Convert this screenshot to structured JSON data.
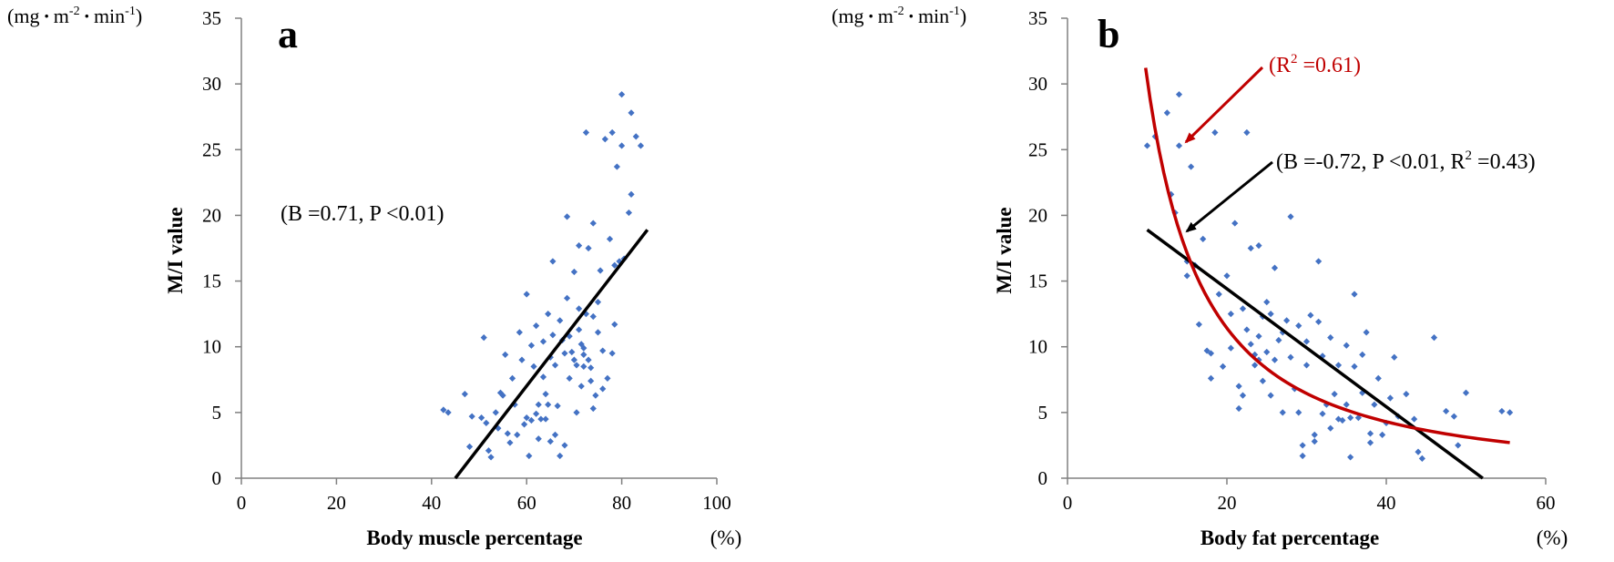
{
  "colors": {
    "points": "#4472C4",
    "fit_line": "#000000",
    "curve": "#C00000",
    "axis": "#808080"
  },
  "chart_data": [
    {
      "panel_label": "a",
      "type": "scatter",
      "xlabel": "Body muscle percentage",
      "xunit": "(%)",
      "ylabel": "M/I value",
      "yunit": "(mg·m⁻²·min⁻¹)",
      "yunit_parts": {
        "a": "(mg",
        "b": "m",
        "c": "-2",
        "d": "min",
        "e": "-1",
        "f": ")"
      },
      "xlim": [
        0,
        100
      ],
      "ylim": [
        0,
        35
      ],
      "xticks": [
        0,
        20,
        40,
        60,
        80,
        100
      ],
      "yticks": [
        0,
        5,
        10,
        15,
        20,
        25,
        30,
        35
      ],
      "grid": false,
      "annotations": [
        "(B =0.71, P <0.01)"
      ],
      "fit_line": {
        "x1": 45,
        "y1": 0,
        "x2": 85.4,
        "y2": 18.9
      },
      "points": [
        [
          42.5,
          5.2
        ],
        [
          43.5,
          5.0
        ],
        [
          47.0,
          6.4
        ],
        [
          48.0,
          2.4
        ],
        [
          48.5,
          4.7
        ],
        [
          50.5,
          4.6
        ],
        [
          51.0,
          10.7
        ],
        [
          51.5,
          4.2
        ],
        [
          52.0,
          2.1
        ],
        [
          52.5,
          1.6
        ],
        [
          53.5,
          5.0
        ],
        [
          54.0,
          3.8
        ],
        [
          54.5,
          6.5
        ],
        [
          55.0,
          6.3
        ],
        [
          55.5,
          9.4
        ],
        [
          56.0,
          3.4
        ],
        [
          56.5,
          2.7
        ],
        [
          57.0,
          7.6
        ],
        [
          57.5,
          5.6
        ],
        [
          58.0,
          3.3
        ],
        [
          58.5,
          11.1
        ],
        [
          59.0,
          9.0
        ],
        [
          59.5,
          4.1
        ],
        [
          60.0,
          14.0
        ],
        [
          60.0,
          4.6
        ],
        [
          60.5,
          1.7
        ],
        [
          61.0,
          4.4
        ],
        [
          61.0,
          10.1
        ],
        [
          61.5,
          8.5
        ],
        [
          62.0,
          4.9
        ],
        [
          62.0,
          11.6
        ],
        [
          62.5,
          5.6
        ],
        [
          62.5,
          3.0
        ],
        [
          63.0,
          4.5
        ],
        [
          63.5,
          10.4
        ],
        [
          63.5,
          7.7
        ],
        [
          64.0,
          4.5
        ],
        [
          64.0,
          6.4
        ],
        [
          64.5,
          12.5
        ],
        [
          64.5,
          5.6
        ],
        [
          65.0,
          2.8
        ],
        [
          65.0,
          9.2
        ],
        [
          65.5,
          16.5
        ],
        [
          65.5,
          10.9
        ],
        [
          66.0,
          8.6
        ],
        [
          66.0,
          3.3
        ],
        [
          66.5,
          5.5
        ],
        [
          67.0,
          1.7
        ],
        [
          67.0,
          12.0
        ],
        [
          67.5,
          10.5
        ],
        [
          68.0,
          9.5
        ],
        [
          68.0,
          2.5
        ],
        [
          68.5,
          19.9
        ],
        [
          68.5,
          13.7
        ],
        [
          69.0,
          10.8
        ],
        [
          69.0,
          7.6
        ],
        [
          69.5,
          9.6
        ],
        [
          70.0,
          15.7
        ],
        [
          70.0,
          9.0
        ],
        [
          70.5,
          8.6
        ],
        [
          70.5,
          5.0
        ],
        [
          71.0,
          12.9
        ],
        [
          71.0,
          17.7
        ],
        [
          71.0,
          11.3
        ],
        [
          71.5,
          10.2
        ],
        [
          71.5,
          7.0
        ],
        [
          72.0,
          9.4
        ],
        [
          72.0,
          9.9
        ],
        [
          72.0,
          8.5
        ],
        [
          72.5,
          12.5
        ],
        [
          72.5,
          26.3
        ],
        [
          73.0,
          9.0
        ],
        [
          73.0,
          17.5
        ],
        [
          73.5,
          8.4
        ],
        [
          73.5,
          7.4
        ],
        [
          74.0,
          5.3
        ],
        [
          74.0,
          19.4
        ],
        [
          74.0,
          12.3
        ],
        [
          74.5,
          6.3
        ],
        [
          75.0,
          13.4
        ],
        [
          75.0,
          11.1
        ],
        [
          75.5,
          15.8
        ],
        [
          76.0,
          9.7
        ],
        [
          76.0,
          6.8
        ],
        [
          76.5,
          25.8
        ],
        [
          77.0,
          7.6
        ],
        [
          77.5,
          18.2
        ],
        [
          78.0,
          9.5
        ],
        [
          78.0,
          26.3
        ],
        [
          78.5,
          16.2
        ],
        [
          78.5,
          11.7
        ],
        [
          79.0,
          23.7
        ],
        [
          79.5,
          16.5
        ],
        [
          80.0,
          25.3
        ],
        [
          80.0,
          29.2
        ],
        [
          80.5,
          16.7
        ],
        [
          81.5,
          20.2
        ],
        [
          82.0,
          21.6
        ],
        [
          82.0,
          27.8
        ],
        [
          83.0,
          26.0
        ],
        [
          84.0,
          25.3
        ]
      ]
    },
    {
      "panel_label": "b",
      "type": "scatter",
      "xlabel": "Body fat percentage",
      "xunit": "(%)",
      "ylabel": "M/I value",
      "yunit": "(mg·m⁻²·min⁻¹)",
      "yunit_parts": {
        "a": "(mg",
        "b": "m",
        "c": "-2",
        "d": "min",
        "e": "-1",
        "f": ")"
      },
      "xlim": [
        0,
        60
      ],
      "ylim": [
        0,
        35
      ],
      "xticks": [
        0,
        20,
        40,
        60
      ],
      "yticks": [
        0,
        5,
        10,
        15,
        20,
        25,
        30,
        35
      ],
      "grid": false,
      "annotations": [
        "(R² =0.61)",
        "(B =-0.72, P <0.01, R² =0.43)"
      ],
      "annotation_parts": {
        "r2_a": "(R",
        "r2_b": "2",
        "r2_c": " =0.61)",
        "bp_a": "(B =-0.72, P <0.01, R",
        "bp_b": "2",
        "bp_c": " =0.43)"
      },
      "fit_line": {
        "x1": 10,
        "y1": 18.9,
        "x2": 52.1,
        "y2": 0
      },
      "curve": {
        "type": "power",
        "a": 780,
        "b": -1.41,
        "x_from": 9.8,
        "x_to": 55.5
      },
      "points": [
        [
          10.0,
          25.3
        ],
        [
          11.0,
          26.0
        ],
        [
          12.5,
          27.8
        ],
        [
          13.0,
          21.6
        ],
        [
          13.5,
          20.2
        ],
        [
          14.0,
          29.2
        ],
        [
          14.0,
          25.3
        ],
        [
          15.0,
          16.5
        ],
        [
          15.0,
          15.4
        ],
        [
          15.5,
          23.7
        ],
        [
          16.0,
          16.2
        ],
        [
          16.5,
          11.7
        ],
        [
          17.0,
          18.2
        ],
        [
          17.5,
          9.7
        ],
        [
          18.0,
          7.6
        ],
        [
          18.0,
          9.5
        ],
        [
          18.5,
          26.3
        ],
        [
          19.0,
          14.0
        ],
        [
          19.5,
          8.5
        ],
        [
          20.0,
          15.4
        ],
        [
          20.5,
          12.5
        ],
        [
          20.5,
          9.9
        ],
        [
          21.0,
          19.4
        ],
        [
          21.5,
          7.0
        ],
        [
          21.5,
          5.3
        ],
        [
          22.0,
          6.3
        ],
        [
          22.0,
          12.9
        ],
        [
          22.5,
          26.3
        ],
        [
          22.5,
          11.3
        ],
        [
          23.0,
          17.5
        ],
        [
          23.0,
          10.2
        ],
        [
          23.5,
          9.4
        ],
        [
          23.5,
          8.6
        ],
        [
          24.0,
          10.8
        ],
        [
          24.0,
          17.7
        ],
        [
          24.0,
          9.0
        ],
        [
          24.5,
          12.3
        ],
        [
          24.5,
          7.4
        ],
        [
          25.0,
          9.6
        ],
        [
          25.0,
          13.4
        ],
        [
          25.5,
          6.3
        ],
        [
          25.5,
          12.5
        ],
        [
          26.0,
          9.0
        ],
        [
          26.0,
          16.0
        ],
        [
          26.5,
          10.5
        ],
        [
          27.0,
          11.1
        ],
        [
          27.0,
          5.0
        ],
        [
          27.5,
          12.0
        ],
        [
          28.0,
          19.9
        ],
        [
          28.0,
          9.2
        ],
        [
          28.5,
          6.8
        ],
        [
          29.0,
          5.0
        ],
        [
          29.0,
          11.6
        ],
        [
          29.5,
          1.7
        ],
        [
          29.5,
          2.5
        ],
        [
          30.0,
          10.4
        ],
        [
          30.0,
          8.6
        ],
        [
          30.5,
          12.4
        ],
        [
          31.0,
          3.3
        ],
        [
          31.0,
          2.8
        ],
        [
          31.5,
          16.5
        ],
        [
          31.5,
          11.9
        ],
        [
          32.0,
          4.9
        ],
        [
          32.0,
          9.3
        ],
        [
          32.5,
          5.6
        ],
        [
          33.0,
          10.7
        ],
        [
          33.0,
          3.8
        ],
        [
          33.5,
          6.4
        ],
        [
          34.0,
          4.5
        ],
        [
          34.0,
          8.6
        ],
        [
          34.5,
          4.4
        ],
        [
          35.0,
          10.1
        ],
        [
          35.0,
          5.6
        ],
        [
          35.5,
          1.6
        ],
        [
          35.5,
          4.6
        ],
        [
          36.0,
          14.0
        ],
        [
          36.0,
          8.5
        ],
        [
          36.5,
          4.6
        ],
        [
          37.0,
          9.4
        ],
        [
          37.0,
          6.5
        ],
        [
          37.5,
          11.1
        ],
        [
          38.0,
          3.4
        ],
        [
          38.0,
          2.7
        ],
        [
          38.5,
          5.6
        ],
        [
          39.0,
          7.6
        ],
        [
          39.5,
          3.3
        ],
        [
          40.0,
          4.2
        ],
        [
          40.5,
          6.1
        ],
        [
          41.0,
          9.2
        ],
        [
          41.5,
          4.7
        ],
        [
          42.5,
          6.4
        ],
        [
          43.5,
          4.5
        ],
        [
          44.0,
          2.0
        ],
        [
          44.5,
          1.5
        ],
        [
          46.0,
          10.7
        ],
        [
          47.5,
          5.1
        ],
        [
          48.5,
          4.7
        ],
        [
          49.0,
          2.5
        ],
        [
          50.0,
          6.5
        ],
        [
          54.5,
          5.1
        ],
        [
          55.5,
          5.0
        ]
      ]
    }
  ]
}
